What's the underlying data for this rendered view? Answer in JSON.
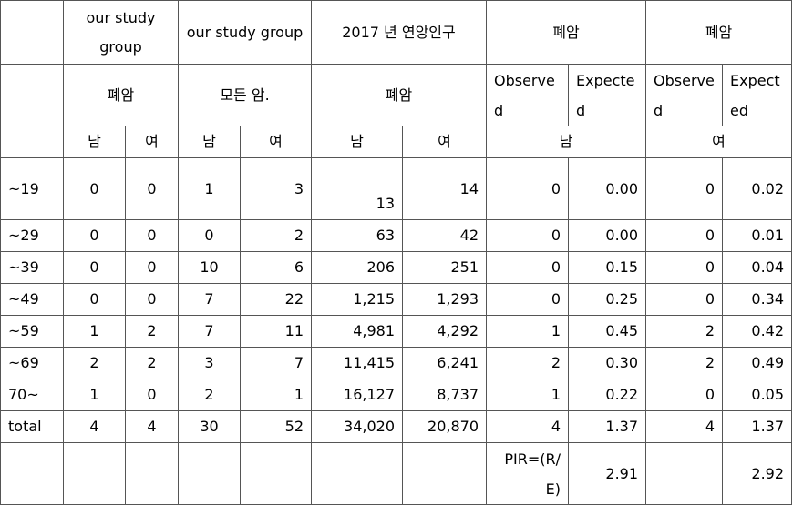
{
  "header1": [
    "",
    "our study group",
    "our study group",
    "2017 년 연앙인구",
    "폐암",
    "폐암"
  ],
  "header2": {
    "ours_lung": "폐암",
    "ours_all": "모든 암.",
    "pop_lung": "폐암",
    "observed": "Observed",
    "expected": "Expected"
  },
  "sex": {
    "male": "남",
    "female": "여"
  },
  "rows": [
    {
      "age": "~19",
      "v": [
        "0",
        "0",
        "1",
        "3",
        "13",
        "14",
        "0",
        "0.00",
        "0",
        "0.02"
      ]
    },
    {
      "age": "~29",
      "v": [
        "0",
        "0",
        "0",
        "2",
        "63",
        "42",
        "0",
        "0.00",
        "0",
        "0.01"
      ]
    },
    {
      "age": "~39",
      "v": [
        "0",
        "0",
        "10",
        "6",
        "206",
        "251",
        "0",
        "0.15",
        "0",
        "0.04"
      ]
    },
    {
      "age": "~49",
      "v": [
        "0",
        "0",
        "7",
        "22",
        "1,215",
        "1,293",
        "0",
        "0.25",
        "0",
        "0.34"
      ]
    },
    {
      "age": "~59",
      "v": [
        "1",
        "2",
        "7",
        "11",
        "4,981",
        "4,292",
        "1",
        "0.45",
        "2",
        "0.42"
      ]
    },
    {
      "age": "~69",
      "v": [
        "2",
        "2",
        "3",
        "7",
        "11,415",
        "6,241",
        "2",
        "0.30",
        "2",
        "0.49"
      ]
    },
    {
      "age": "70~",
      "v": [
        "1",
        "0",
        "2",
        "1",
        "16,127",
        "8,737",
        "1",
        "0.22",
        "0",
        "0.05"
      ]
    },
    {
      "age": "total",
      "v": [
        "4",
        "4",
        "30",
        "52",
        "34,020",
        "20,870",
        "4",
        "1.37",
        "4",
        "1.37"
      ]
    }
  ],
  "pir": {
    "label": "PIR=(R/E)",
    "male": "2.91",
    "female": "2.92"
  }
}
